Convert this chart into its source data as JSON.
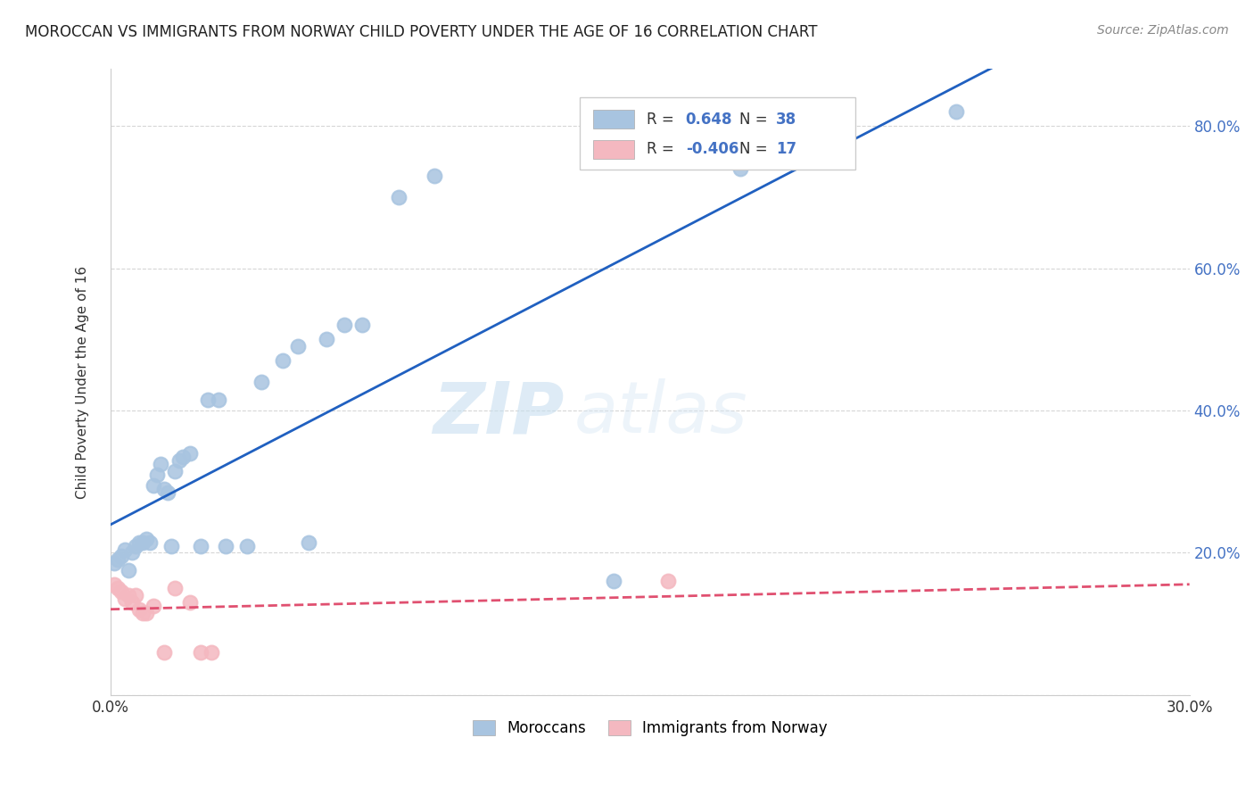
{
  "title": "MOROCCAN VS IMMIGRANTS FROM NORWAY CHILD POVERTY UNDER THE AGE OF 16 CORRELATION CHART",
  "source": "Source: ZipAtlas.com",
  "ylabel": "Child Poverty Under the Age of 16",
  "xlim": [
    0.0,
    0.3
  ],
  "ylim": [
    0.0,
    0.88
  ],
  "yticks": [
    0.0,
    0.2,
    0.4,
    0.6,
    0.8
  ],
  "ytick_labels": [
    "",
    "20.0%",
    "40.0%",
    "60.0%",
    "80.0%"
  ],
  "moroccan_r": "0.648",
  "moroccan_n": "38",
  "norway_r": "-0.406",
  "norway_n": "17",
  "moroccan_color": "#a8c4e0",
  "moroccan_line_color": "#2060c0",
  "norway_color": "#f4b8c0",
  "norway_line_color": "#e05070",
  "watermark_zip": "ZIP",
  "watermark_atlas": "atlas",
  "background_color": "#ffffff",
  "legend_text_color": "#4472c4",
  "moroccan_x": [
    0.001,
    0.002,
    0.003,
    0.004,
    0.005,
    0.006,
    0.007,
    0.008,
    0.009,
    0.01,
    0.011,
    0.012,
    0.013,
    0.014,
    0.015,
    0.016,
    0.017,
    0.018,
    0.019,
    0.02,
    0.022,
    0.025,
    0.027,
    0.03,
    0.032,
    0.038,
    0.042,
    0.048,
    0.052,
    0.055,
    0.06,
    0.065,
    0.07,
    0.08,
    0.09,
    0.14,
    0.175,
    0.235
  ],
  "moroccan_y": [
    0.185,
    0.19,
    0.195,
    0.205,
    0.175,
    0.2,
    0.21,
    0.215,
    0.215,
    0.22,
    0.215,
    0.295,
    0.31,
    0.325,
    0.29,
    0.285,
    0.21,
    0.315,
    0.33,
    0.335,
    0.34,
    0.21,
    0.415,
    0.415,
    0.21,
    0.21,
    0.44,
    0.47,
    0.49,
    0.215,
    0.5,
    0.52,
    0.52,
    0.7,
    0.73,
    0.16,
    0.74,
    0.82
  ],
  "norway_x": [
    0.001,
    0.002,
    0.003,
    0.004,
    0.005,
    0.006,
    0.007,
    0.008,
    0.009,
    0.01,
    0.012,
    0.015,
    0.018,
    0.022,
    0.025,
    0.028,
    0.155
  ],
  "norway_y": [
    0.155,
    0.15,
    0.145,
    0.135,
    0.14,
    0.13,
    0.14,
    0.12,
    0.115,
    0.115,
    0.125,
    0.06,
    0.15,
    0.13,
    0.06,
    0.06,
    0.16
  ]
}
